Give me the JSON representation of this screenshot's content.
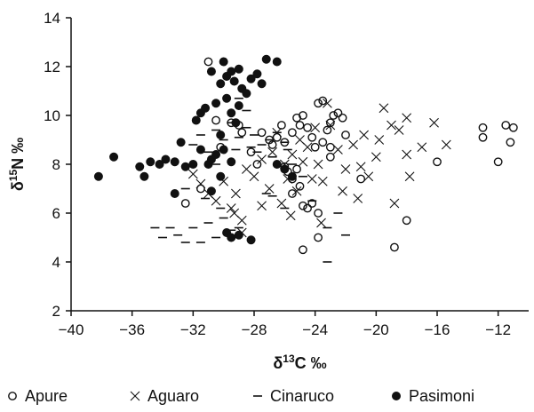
{
  "chart_data": {
    "type": "scatter",
    "title": "",
    "xlabel": {
      "delta": "δ",
      "sup": "13",
      "rest": "C ‰"
    },
    "ylabel": {
      "delta": "δ",
      "sup": "15",
      "rest": "N ‰"
    },
    "xlim": [
      -40,
      -10
    ],
    "ylim": [
      2,
      14
    ],
    "xticks": [
      "−40",
      "−36",
      "−32",
      "−28",
      "−24",
      "−20",
      "−16",
      "−12"
    ],
    "xtick_values": [
      -40,
      -36,
      -32,
      -28,
      -24,
      -20,
      -16,
      -12
    ],
    "yticks": [
      "2",
      "4",
      "6",
      "8",
      "10",
      "12",
      "14"
    ],
    "ytick_values": [
      2,
      4,
      6,
      8,
      10,
      12,
      14
    ],
    "grid": false,
    "legend_position": "bottom",
    "series": [
      {
        "name": "Apure",
        "marker": "open-circle",
        "color": "#111111",
        "points": [
          [
            -31.0,
            12.2
          ],
          [
            -30.5,
            9.8
          ],
          [
            -30.2,
            8.7
          ],
          [
            -29.5,
            9.7
          ],
          [
            -29.0,
            9.6
          ],
          [
            -28.8,
            9.3
          ],
          [
            -28.2,
            8.5
          ],
          [
            -27.8,
            8.0
          ],
          [
            -27.5,
            9.3
          ],
          [
            -27.0,
            9.0
          ],
          [
            -26.5,
            9.1
          ],
          [
            -26.2,
            9.6
          ],
          [
            -26.8,
            8.8
          ],
          [
            -26.0,
            8.9
          ],
          [
            -25.5,
            9.3
          ],
          [
            -25.2,
            9.9
          ],
          [
            -25.0,
            9.6
          ],
          [
            -24.8,
            10.0
          ],
          [
            -24.5,
            9.5
          ],
          [
            -24.2,
            9.1
          ],
          [
            -24.0,
            8.7
          ],
          [
            -23.8,
            10.5
          ],
          [
            -23.5,
            10.6
          ],
          [
            -23.2,
            9.4
          ],
          [
            -23.0,
            9.7
          ],
          [
            -22.8,
            10.0
          ],
          [
            -22.5,
            10.1
          ],
          [
            -22.2,
            9.9
          ],
          [
            -22.0,
            9.2
          ],
          [
            -23.0,
            8.3
          ],
          [
            -23.5,
            8.9
          ],
          [
            -23.0,
            8.7
          ],
          [
            -26.0,
            7.9
          ],
          [
            -25.8,
            7.7
          ],
          [
            -25.5,
            7.4
          ],
          [
            -25.2,
            7.8
          ],
          [
            -25.0,
            7.1
          ],
          [
            -25.5,
            6.8
          ],
          [
            -24.8,
            6.3
          ],
          [
            -24.5,
            6.2
          ],
          [
            -24.2,
            6.4
          ],
          [
            -23.8,
            6.0
          ],
          [
            -24.8,
            4.5
          ],
          [
            -23.8,
            5.0
          ],
          [
            -21.0,
            7.4
          ],
          [
            -18.8,
            4.6
          ],
          [
            -18.0,
            5.7
          ],
          [
            -16.0,
            8.1
          ],
          [
            -13.0,
            9.5
          ],
          [
            -13.0,
            9.1
          ],
          [
            -12.0,
            8.1
          ],
          [
            -11.5,
            9.6
          ],
          [
            -11.2,
            8.9
          ],
          [
            -11.0,
            9.5
          ],
          [
            -32.5,
            6.4
          ],
          [
            -31.5,
            7.0
          ]
        ]
      },
      {
        "name": "Aguaro",
        "marker": "x",
        "color": "#111111",
        "points": [
          [
            -32.0,
            7.6
          ],
          [
            -31.5,
            7.2
          ],
          [
            -31.0,
            6.8
          ],
          [
            -30.5,
            6.5
          ],
          [
            -30.0,
            7.3
          ],
          [
            -29.5,
            6.2
          ],
          [
            -29.2,
            6.8
          ],
          [
            -28.8,
            5.7
          ],
          [
            -28.8,
            5.2
          ],
          [
            -28.5,
            7.8
          ],
          [
            -28.0,
            7.5
          ],
          [
            -27.5,
            8.2
          ],
          [
            -27.0,
            7.0
          ],
          [
            -26.8,
            8.5
          ],
          [
            -26.5,
            9.3
          ],
          [
            -26.2,
            6.4
          ],
          [
            -26.0,
            8.0
          ],
          [
            -25.8,
            7.4
          ],
          [
            -25.5,
            8.4
          ],
          [
            -25.2,
            6.9
          ],
          [
            -25.0,
            9.0
          ],
          [
            -24.8,
            8.1
          ],
          [
            -24.5,
            8.7
          ],
          [
            -24.2,
            7.4
          ],
          [
            -24.0,
            9.5
          ],
          [
            -23.8,
            8.0
          ],
          [
            -23.5,
            7.3
          ],
          [
            -23.2,
            10.5
          ],
          [
            -23.0,
            9.6
          ],
          [
            -22.5,
            8.6
          ],
          [
            -22.0,
            7.8
          ],
          [
            -21.5,
            8.8
          ],
          [
            -21.2,
            6.6
          ],
          [
            -21.0,
            7.9
          ],
          [
            -20.5,
            7.5
          ],
          [
            -20.0,
            8.3
          ],
          [
            -19.5,
            10.3
          ],
          [
            -19.0,
            9.6
          ],
          [
            -18.8,
            6.4
          ],
          [
            -18.5,
            9.4
          ],
          [
            -18.0,
            9.9
          ],
          [
            -18.0,
            8.4
          ],
          [
            -17.8,
            7.5
          ],
          [
            -17.0,
            8.7
          ],
          [
            -16.2,
            9.7
          ],
          [
            -15.4,
            8.8
          ],
          [
            -19.8,
            9.0
          ],
          [
            -20.8,
            9.2
          ],
          [
            -22.2,
            6.9
          ],
          [
            -27.5,
            6.3
          ],
          [
            -25.6,
            5.9
          ],
          [
            -23.6,
            5.6
          ],
          [
            -29.3,
            6.0
          ]
        ]
      },
      {
        "name": "Cinaruco",
        "marker": "dash",
        "color": "#111111",
        "points": [
          [
            -34.5,
            5.4
          ],
          [
            -34.0,
            5.0
          ],
          [
            -33.5,
            5.4
          ],
          [
            -33.0,
            5.1
          ],
          [
            -32.5,
            4.8
          ],
          [
            -32.0,
            5.4
          ],
          [
            -31.5,
            4.8
          ],
          [
            -31.0,
            5.6
          ],
          [
            -30.5,
            5.0
          ],
          [
            -30.0,
            5.8
          ],
          [
            -29.5,
            5.3
          ],
          [
            -29.0,
            5.4
          ],
          [
            -32.5,
            7.0
          ],
          [
            -32.0,
            8.8
          ],
          [
            -31.5,
            9.2
          ],
          [
            -31.0,
            8.5
          ],
          [
            -30.5,
            9.4
          ],
          [
            -30.5,
            8.0
          ],
          [
            -30.0,
            9.0
          ],
          [
            -29.5,
            9.7
          ],
          [
            -29.2,
            8.6
          ],
          [
            -29.0,
            9.1
          ],
          [
            -28.5,
            9.5
          ],
          [
            -28.2,
            8.7
          ],
          [
            -28.0,
            9.2
          ],
          [
            -27.8,
            8.5
          ],
          [
            -27.5,
            8.8
          ],
          [
            -27.0,
            9.0
          ],
          [
            -26.8,
            8.3
          ],
          [
            -26.5,
            9.3
          ],
          [
            -26.0,
            8.9
          ],
          [
            -25.5,
            8.0
          ],
          [
            -28.5,
            10.2
          ],
          [
            -29.0,
            10.7
          ],
          [
            -27.2,
            6.8
          ],
          [
            -26.8,
            6.7
          ],
          [
            -26.0,
            6.2
          ],
          [
            -24.8,
            7.5
          ],
          [
            -24.2,
            6.5
          ],
          [
            -23.2,
            5.4
          ],
          [
            -22.5,
            6.0
          ],
          [
            -22.0,
            5.1
          ],
          [
            -23.2,
            4.0
          ],
          [
            -30.2,
            6.2
          ],
          [
            -31.2,
            6.6
          ],
          [
            -25.8,
            8.6
          ]
        ]
      },
      {
        "name": "Pasimoni",
        "marker": "filled-circle",
        "color": "#111111",
        "points": [
          [
            -38.2,
            7.5
          ],
          [
            -37.2,
            8.3
          ],
          [
            -35.5,
            7.9
          ],
          [
            -35.2,
            7.5
          ],
          [
            -34.8,
            8.1
          ],
          [
            -34.2,
            8.0
          ],
          [
            -33.8,
            8.2
          ],
          [
            -33.2,
            8.1
          ],
          [
            -33.2,
            6.8
          ],
          [
            -32.8,
            8.9
          ],
          [
            -32.5,
            7.9
          ],
          [
            -32.0,
            8.0
          ],
          [
            -31.8,
            9.8
          ],
          [
            -31.5,
            10.1
          ],
          [
            -31.2,
            10.3
          ],
          [
            -31.0,
            8.0
          ],
          [
            -30.8,
            8.2
          ],
          [
            -30.5,
            8.4
          ],
          [
            -30.8,
            11.8
          ],
          [
            -30.5,
            10.5
          ],
          [
            -30.2,
            11.3
          ],
          [
            -30.0,
            12.2
          ],
          [
            -29.8,
            11.6
          ],
          [
            -29.5,
            11.8
          ],
          [
            -29.3,
            11.4
          ],
          [
            -29.0,
            11.9
          ],
          [
            -28.8,
            11.1
          ],
          [
            -28.5,
            10.9
          ],
          [
            -28.2,
            11.5
          ],
          [
            -27.8,
            11.7
          ],
          [
            -27.5,
            11.3
          ],
          [
            -27.2,
            12.3
          ],
          [
            -26.5,
            12.2
          ],
          [
            -29.8,
            10.7
          ],
          [
            -29.5,
            10.1
          ],
          [
            -29.0,
            10.4
          ],
          [
            -29.2,
            9.7
          ],
          [
            -30.0,
            8.6
          ],
          [
            -29.5,
            8.1
          ],
          [
            -30.2,
            7.5
          ],
          [
            -30.8,
            6.9
          ],
          [
            -29.8,
            5.2
          ],
          [
            -29.5,
            5.0
          ],
          [
            -29.0,
            5.1
          ],
          [
            -28.2,
            4.9
          ],
          [
            -26.0,
            7.8
          ],
          [
            -25.5,
            7.5
          ],
          [
            -26.5,
            8.0
          ],
          [
            -31.5,
            8.6
          ],
          [
            -30.2,
            9.2
          ]
        ]
      }
    ]
  }
}
